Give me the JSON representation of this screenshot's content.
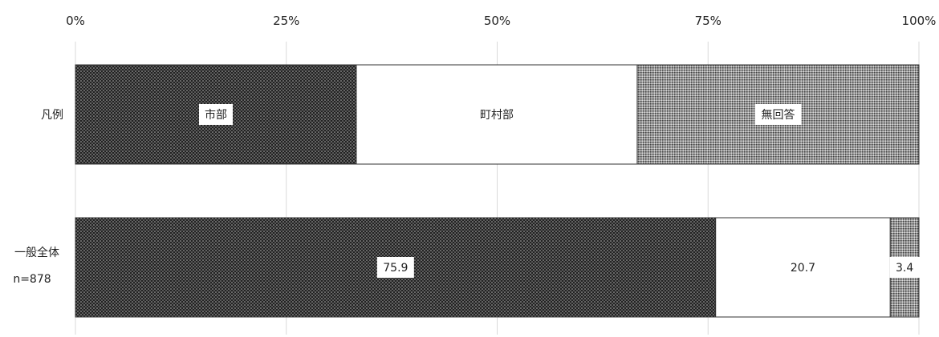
{
  "chart_data": {
    "type": "bar",
    "orientation": "horizontal",
    "stacked": true,
    "x_tick_labels": [
      "0%",
      "25%",
      "50%",
      "75%",
      "100%"
    ],
    "xlim": [
      0,
      100
    ],
    "grid": true,
    "rows": [
      {
        "label": "凡例",
        "sublabel": "",
        "values": [
          33.3,
          33.3,
          33.4
        ],
        "segment_labels": [
          "市部",
          "町村部",
          "無回答"
        ],
        "legend_row": true
      },
      {
        "label": "一般全体",
        "sublabel": "n=878",
        "values": [
          75.9,
          20.7,
          3.4
        ],
        "segment_labels": [
          "75.9",
          "20.7",
          "3.4"
        ],
        "legend_row": false
      }
    ],
    "series": [
      {
        "name": "市部",
        "fill": "dark-dotted",
        "color": "#2b2b2b"
      },
      {
        "name": "町村部",
        "fill": "white",
        "color": "#ffffff"
      },
      {
        "name": "無回答",
        "fill": "grey-crosshatch",
        "color": "#8a8a8a"
      }
    ]
  }
}
